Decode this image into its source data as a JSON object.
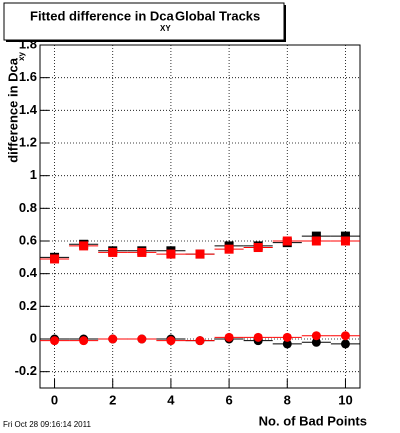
{
  "chart_data": {
    "type": "scatter",
    "title": "Fitted difference in Dca",
    "title_subscript": "XY",
    "title_suffix": "Global Tracks",
    "y_label": "difference in Dca",
    "y_label_subscript": "xy",
    "x_label": "No. of Bad Points",
    "timestamp": "Fri Oct 28 09:16:14 2011",
    "x": [
      0,
      1,
      2,
      3,
      4,
      5,
      6,
      7,
      8,
      9,
      10
    ],
    "xerr": 0.5,
    "series": [
      {
        "color": "#000000",
        "marker": "square",
        "values": [
          0.5,
          0.58,
          0.54,
          0.54,
          0.54,
          0.52,
          0.57,
          0.57,
          0.59,
          0.63,
          0.63
        ]
      },
      {
        "color": "#ff0000",
        "marker": "square",
        "values": [
          0.49,
          0.57,
          0.53,
          0.53,
          0.52,
          0.52,
          0.55,
          0.56,
          0.6,
          0.6,
          0.6
        ]
      },
      {
        "color": "#000000",
        "marker": "circle",
        "values": [
          0.0,
          0.0,
          0.0,
          0.0,
          0.0,
          -0.01,
          0.0,
          -0.01,
          -0.03,
          -0.02,
          -0.03
        ]
      },
      {
        "color": "#ff0000",
        "marker": "circle",
        "values": [
          -0.01,
          -0.01,
          0.0,
          0.0,
          -0.01,
          -0.01,
          0.01,
          0.01,
          0.01,
          0.02,
          0.02
        ]
      }
    ],
    "xlim": [
      -0.5,
      10.5
    ],
    "ylim": [
      -0.3,
      1.8
    ],
    "xticks": [
      0,
      2,
      4,
      6,
      8,
      10
    ],
    "yticks": [
      -0.2,
      0,
      0.2,
      0.4,
      0.6,
      0.8,
      1,
      1.2,
      1.4,
      1.6,
      1.8
    ],
    "grid": true
  }
}
